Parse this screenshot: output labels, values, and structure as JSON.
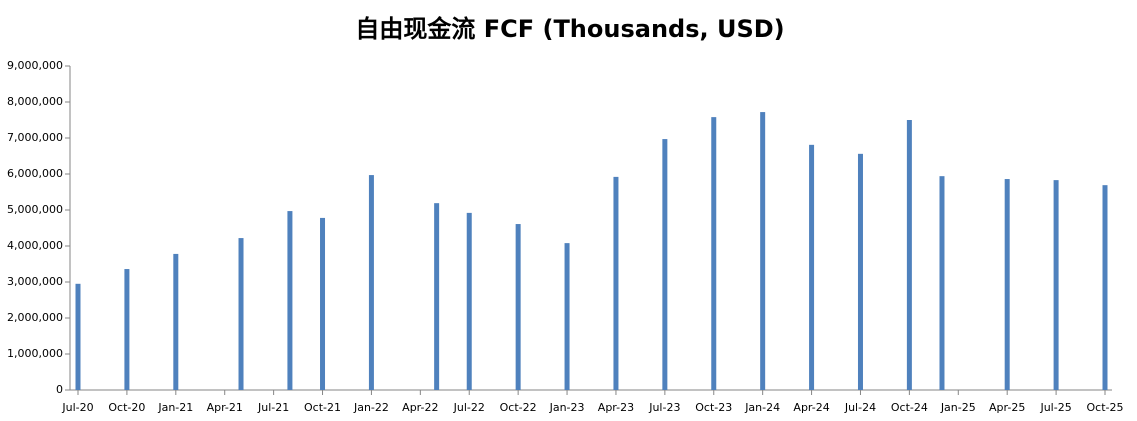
{
  "chart_data": {
    "type": "bar",
    "title": "自由现金流 FCF (Thousands, USD)",
    "x": [
      "2020-07",
      "2020-10",
      "2021-01",
      "2021-05",
      "2021-08",
      "2021-10",
      "2022-01",
      "2022-05",
      "2022-07",
      "2022-10",
      "2023-01",
      "2023-04",
      "2023-07",
      "2023-10",
      "2024-01",
      "2024-04",
      "2024-07",
      "2024-10",
      "2024-12",
      "2025-04",
      "2025-07",
      "2025-10"
    ],
    "values": [
      2950000,
      3360000,
      3780000,
      4220000,
      4970000,
      4780000,
      5970000,
      5190000,
      4920000,
      4610000,
      4080000,
      5920000,
      6970000,
      7580000,
      7720000,
      6810000,
      6560000,
      7500000,
      5940000,
      5860000,
      5830000,
      5690000
    ],
    "color": "#4f81bd",
    "xlim": [
      "2020-07",
      "2025-10"
    ],
    "xticks": [
      {
        "value": "2020-07",
        "label": "Jul-20"
      },
      {
        "value": "2020-10",
        "label": "Oct-20"
      },
      {
        "value": "2021-01",
        "label": "Jan-21"
      },
      {
        "value": "2021-04",
        "label": "Apr-21"
      },
      {
        "value": "2021-07",
        "label": "Jul-21"
      },
      {
        "value": "2021-10",
        "label": "Oct-21"
      },
      {
        "value": "2022-01",
        "label": "Jan-22"
      },
      {
        "value": "2022-04",
        "label": "Apr-22"
      },
      {
        "value": "2022-07",
        "label": "Jul-22"
      },
      {
        "value": "2022-10",
        "label": "Oct-22"
      },
      {
        "value": "2023-01",
        "label": "Jan-23"
      },
      {
        "value": "2023-04",
        "label": "Apr-23"
      },
      {
        "value": "2023-07",
        "label": "Jul-23"
      },
      {
        "value": "2023-10",
        "label": "Oct-23"
      },
      {
        "value": "2024-01",
        "label": "Jan-24"
      },
      {
        "value": "2024-04",
        "label": "Apr-24"
      },
      {
        "value": "2024-07",
        "label": "Jul-24"
      },
      {
        "value": "2024-10",
        "label": "Oct-24"
      },
      {
        "value": "2025-01",
        "label": "Jan-25"
      },
      {
        "value": "2025-04",
        "label": "Apr-25"
      },
      {
        "value": "2025-07",
        "label": "Jul-25"
      },
      {
        "value": "2025-10",
        "label": "Oct-25"
      }
    ],
    "ylim": [
      0,
      9000000
    ],
    "yticks": [
      0,
      {
        "value": 1000000,
        "label": "1,000,000"
      },
      {
        "value": 2000000,
        "label": "2,000,000"
      },
      {
        "value": 3000000,
        "label": "3,000,000"
      },
      {
        "value": 4000000,
        "label": "4,000,000"
      },
      {
        "value": 5000000,
        "label": "5,000,000"
      },
      {
        "value": 6000000,
        "label": "6,000,000"
      },
      {
        "value": 7000000,
        "label": "7,000,000"
      },
      {
        "value": 8000000,
        "label": "8,000,000"
      },
      {
        "value": 9000000,
        "label": "9,000,000"
      }
    ],
    "grid": false
  }
}
